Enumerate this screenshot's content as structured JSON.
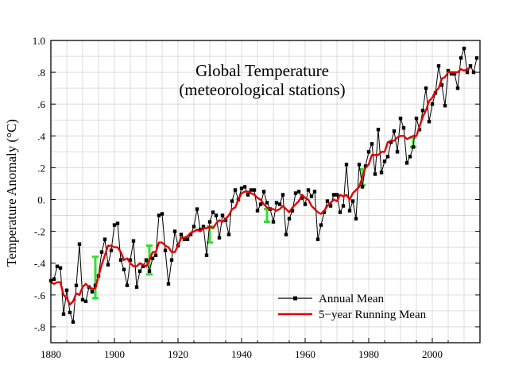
{
  "chart_data": {
    "type": "line",
    "title": "Global Temperature",
    "subtitle": "(meteorological stations)",
    "xlabel": "",
    "ylabel": "Temperature Anomaly (°C)",
    "xlim": [
      1880,
      2015
    ],
    "ylim": [
      -0.9,
      1.0
    ],
    "x_ticks": [
      1880,
      1900,
      1920,
      1940,
      1960,
      1980,
      2000
    ],
    "x_tick_labels": [
      "1880",
      "1900",
      "1920",
      "1940",
      "1960",
      "1980",
      "2000"
    ],
    "y_ticks": [
      -0.8,
      -0.6,
      -0.4,
      -0.2,
      0.0,
      0.2,
      0.4,
      0.6,
      0.8,
      1.0
    ],
    "y_tick_labels": [
      "-.8",
      "-.6",
      "-.4",
      "-.2",
      "0.",
      ".2",
      ".4",
      ".6",
      ".8",
      "1.0"
    ],
    "grid": true,
    "legend_position": "bottom-right",
    "colors": {
      "annual": "#000000",
      "running": "#e00000",
      "error_bars": "#33dd33"
    },
    "series": [
      {
        "name": "Annual Mean",
        "x": [
          1880,
          1881,
          1882,
          1883,
          1884,
          1885,
          1886,
          1887,
          1888,
          1889,
          1890,
          1891,
          1892,
          1893,
          1894,
          1895,
          1896,
          1897,
          1898,
          1899,
          1900,
          1901,
          1902,
          1903,
          1904,
          1905,
          1906,
          1907,
          1908,
          1909,
          1910,
          1911,
          1912,
          1913,
          1914,
          1915,
          1916,
          1917,
          1918,
          1919,
          1920,
          1921,
          1922,
          1923,
          1924,
          1925,
          1926,
          1927,
          1928,
          1929,
          1930,
          1931,
          1932,
          1933,
          1934,
          1935,
          1936,
          1937,
          1938,
          1939,
          1940,
          1941,
          1942,
          1943,
          1944,
          1945,
          1946,
          1947,
          1948,
          1949,
          1950,
          1951,
          1952,
          1953,
          1954,
          1955,
          1956,
          1957,
          1958,
          1959,
          1960,
          1961,
          1962,
          1963,
          1964,
          1965,
          1966,
          1967,
          1968,
          1969,
          1970,
          1971,
          1972,
          1973,
          1974,
          1975,
          1976,
          1977,
          1978,
          1979,
          1980,
          1981,
          1982,
          1983,
          1984,
          1985,
          1986,
          1987,
          1988,
          1989,
          1990,
          1991,
          1992,
          1993,
          1994,
          1995,
          1996,
          1997,
          1998,
          1999,
          2000,
          2001,
          2002,
          2003,
          2004,
          2005,
          2006,
          2007,
          2008,
          2009,
          2010,
          2011,
          2012,
          2013,
          2014
        ],
        "y": [
          -0.51,
          -0.5,
          -0.42,
          -0.43,
          -0.72,
          -0.57,
          -0.71,
          -0.77,
          -0.54,
          -0.28,
          -0.63,
          -0.64,
          -0.55,
          -0.58,
          -0.54,
          -0.48,
          -0.33,
          -0.25,
          -0.41,
          -0.32,
          -0.16,
          -0.15,
          -0.38,
          -0.44,
          -0.54,
          -0.38,
          -0.26,
          -0.55,
          -0.45,
          -0.42,
          -0.38,
          -0.45,
          -0.37,
          -0.35,
          -0.1,
          -0.09,
          -0.32,
          -0.53,
          -0.38,
          -0.2,
          -0.29,
          -0.22,
          -0.25,
          -0.25,
          -0.22,
          -0.17,
          -0.06,
          -0.19,
          -0.17,
          -0.35,
          -0.14,
          -0.08,
          -0.1,
          -0.24,
          -0.1,
          -0.13,
          -0.22,
          -0.01,
          0.06,
          0.0,
          0.07,
          0.08,
          0.03,
          0.06,
          0.06,
          -0.07,
          -0.03,
          0.05,
          -0.02,
          -0.06,
          -0.14,
          -0.02,
          -0.03,
          0.03,
          -0.22,
          -0.12,
          -0.07,
          0.04,
          0.05,
          0.01,
          -0.03,
          0.06,
          0.02,
          0.05,
          -0.25,
          -0.16,
          -0.08,
          -0.01,
          -0.04,
          0.03,
          0.03,
          -0.08,
          -0.04,
          0.22,
          -0.07,
          -0.01,
          -0.12,
          0.22,
          0.08,
          0.21,
          0.3,
          0.35,
          0.16,
          0.44,
          0.17,
          0.24,
          0.27,
          0.36,
          0.43,
          0.3,
          0.51,
          0.45,
          0.23,
          0.27,
          0.33,
          0.51,
          0.44,
          0.56,
          0.7,
          0.49,
          0.6,
          0.67,
          0.84,
          0.72,
          0.59,
          0.81,
          0.79,
          0.79,
          0.7,
          0.89,
          0.95,
          0.8,
          0.84,
          0.8,
          0.89
        ]
      },
      {
        "name": "5−year Running Mean",
        "x": [
          1880,
          1881,
          1882,
          1883,
          1884,
          1885,
          1886,
          1887,
          1888,
          1889,
          1890,
          1891,
          1892,
          1893,
          1894,
          1895,
          1896,
          1897,
          1898,
          1899,
          1900,
          1901,
          1902,
          1903,
          1904,
          1905,
          1906,
          1907,
          1908,
          1909,
          1910,
          1911,
          1912,
          1913,
          1914,
          1915,
          1916,
          1917,
          1918,
          1919,
          1920,
          1921,
          1922,
          1923,
          1924,
          1925,
          1926,
          1927,
          1928,
          1929,
          1930,
          1931,
          1932,
          1933,
          1934,
          1935,
          1936,
          1937,
          1938,
          1939,
          1940,
          1941,
          1942,
          1943,
          1944,
          1945,
          1946,
          1947,
          1948,
          1949,
          1950,
          1951,
          1952,
          1953,
          1954,
          1955,
          1956,
          1957,
          1958,
          1959,
          1960,
          1961,
          1962,
          1963,
          1964,
          1965,
          1966,
          1967,
          1968,
          1969,
          1970,
          1971,
          1972,
          1973,
          1974,
          1975,
          1976,
          1977,
          1978,
          1979,
          1980,
          1981,
          1982,
          1983,
          1984,
          1985,
          1986,
          1987,
          1988,
          1989,
          1990,
          1991,
          1992,
          1993,
          1994,
          1995,
          1996,
          1997,
          1998,
          1999,
          2000,
          2001,
          2002,
          2003,
          2004,
          2005,
          2006,
          2007,
          2008,
          2009,
          2010,
          2011,
          2012
        ],
        "y": [
          -0.52,
          -0.53,
          -0.52,
          -0.52,
          -0.6,
          -0.62,
          -0.66,
          -0.64,
          -0.59,
          -0.6,
          -0.55,
          -0.53,
          -0.55,
          -0.56,
          -0.56,
          -0.48,
          -0.41,
          -0.35,
          -0.29,
          -0.29,
          -0.3,
          -0.3,
          -0.33,
          -0.38,
          -0.37,
          -0.4,
          -0.42,
          -0.42,
          -0.4,
          -0.41,
          -0.42,
          -0.38,
          -0.33,
          -0.33,
          -0.27,
          -0.27,
          -0.29,
          -0.3,
          -0.33,
          -0.33,
          -0.29,
          -0.24,
          -0.24,
          -0.23,
          -0.21,
          -0.2,
          -0.19,
          -0.2,
          -0.18,
          -0.18,
          -0.17,
          -0.18,
          -0.15,
          -0.13,
          -0.14,
          -0.12,
          -0.1,
          -0.06,
          -0.05,
          0.0,
          0.04,
          0.05,
          0.05,
          0.04,
          0.03,
          0.01,
          0.0,
          -0.03,
          -0.05,
          -0.06,
          -0.06,
          -0.07,
          -0.06,
          -0.04,
          -0.06,
          -0.08,
          -0.05,
          -0.03,
          -0.01,
          0.03,
          0.01,
          0.0,
          -0.04,
          -0.06,
          -0.08,
          -0.09,
          -0.07,
          -0.04,
          -0.02,
          0.0,
          -0.01,
          0.03,
          0.02,
          0.03,
          0.0,
          0.04,
          0.06,
          0.08,
          0.14,
          0.2,
          0.22,
          0.28,
          0.28,
          0.28,
          0.3,
          0.3,
          0.36,
          0.37,
          0.37,
          0.39,
          0.4,
          0.4,
          0.38,
          0.39,
          0.4,
          0.4,
          0.46,
          0.52,
          0.56,
          0.62,
          0.64,
          0.68,
          0.7,
          0.76,
          0.77,
          0.8,
          0.8,
          0.8,
          0.8,
          0.82,
          0.81,
          0.82,
          0.83
        ]
      }
    ],
    "error_bars": [
      {
        "x": 1894,
        "low": -0.62,
        "high": -0.36
      },
      {
        "x": 1911,
        "low": -0.47,
        "high": -0.29
      },
      {
        "x": 1930,
        "low": -0.27,
        "high": -0.17
      },
      {
        "x": 1948,
        "low": -0.14,
        "high": -0.06
      },
      {
        "x": 1978,
        "low": 0.09,
        "high": 0.19
      },
      {
        "x": 1994,
        "low": 0.33,
        "high": 0.39
      }
    ]
  }
}
